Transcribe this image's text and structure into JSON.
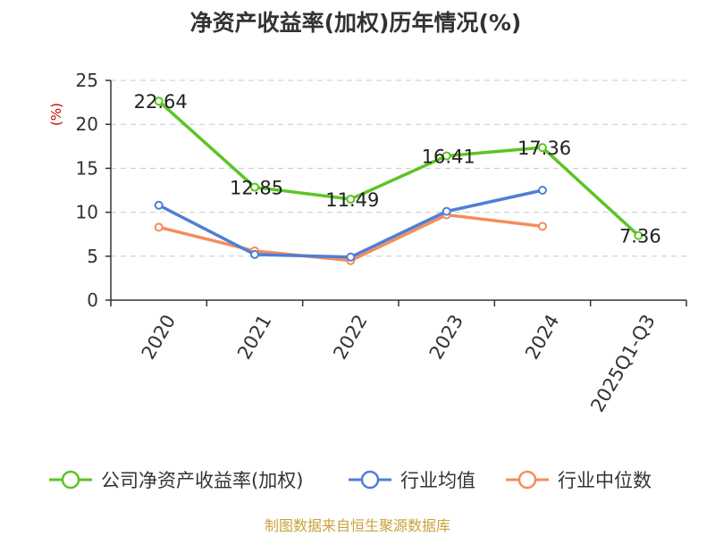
{
  "chart_data": {
    "type": "line",
    "title": "净资产收益率(加权)历年情况(%)",
    "ylabel": "(%)",
    "categories": [
      "2020",
      "2021",
      "2022",
      "2023",
      "2024",
      "2025Q1-Q3"
    ],
    "ylim": [
      0,
      25
    ],
    "yticks": [
      0,
      5,
      10,
      15,
      20,
      25
    ],
    "grid": true,
    "legend_position": "bottom",
    "series": [
      {
        "name": "公司净资产收益率(加权)",
        "color": "#5cc424",
        "values": [
          22.64,
          12.85,
          11.49,
          16.41,
          17.36,
          7.36
        ],
        "labels": [
          "22.64",
          "12.85",
          "11.49",
          "16.41",
          "17.36",
          "7.36"
        ]
      },
      {
        "name": "行业均值",
        "color": "#4e7fd6",
        "values": [
          10.8,
          5.2,
          4.9,
          10.1,
          12.5,
          null
        ]
      },
      {
        "name": "行业中位数",
        "color": "#f58d5b",
        "values": [
          8.3,
          5.6,
          4.5,
          9.7,
          8.4,
          null
        ]
      }
    ]
  },
  "footer": {
    "source": "制图数据来自恒生聚源数据库"
  }
}
